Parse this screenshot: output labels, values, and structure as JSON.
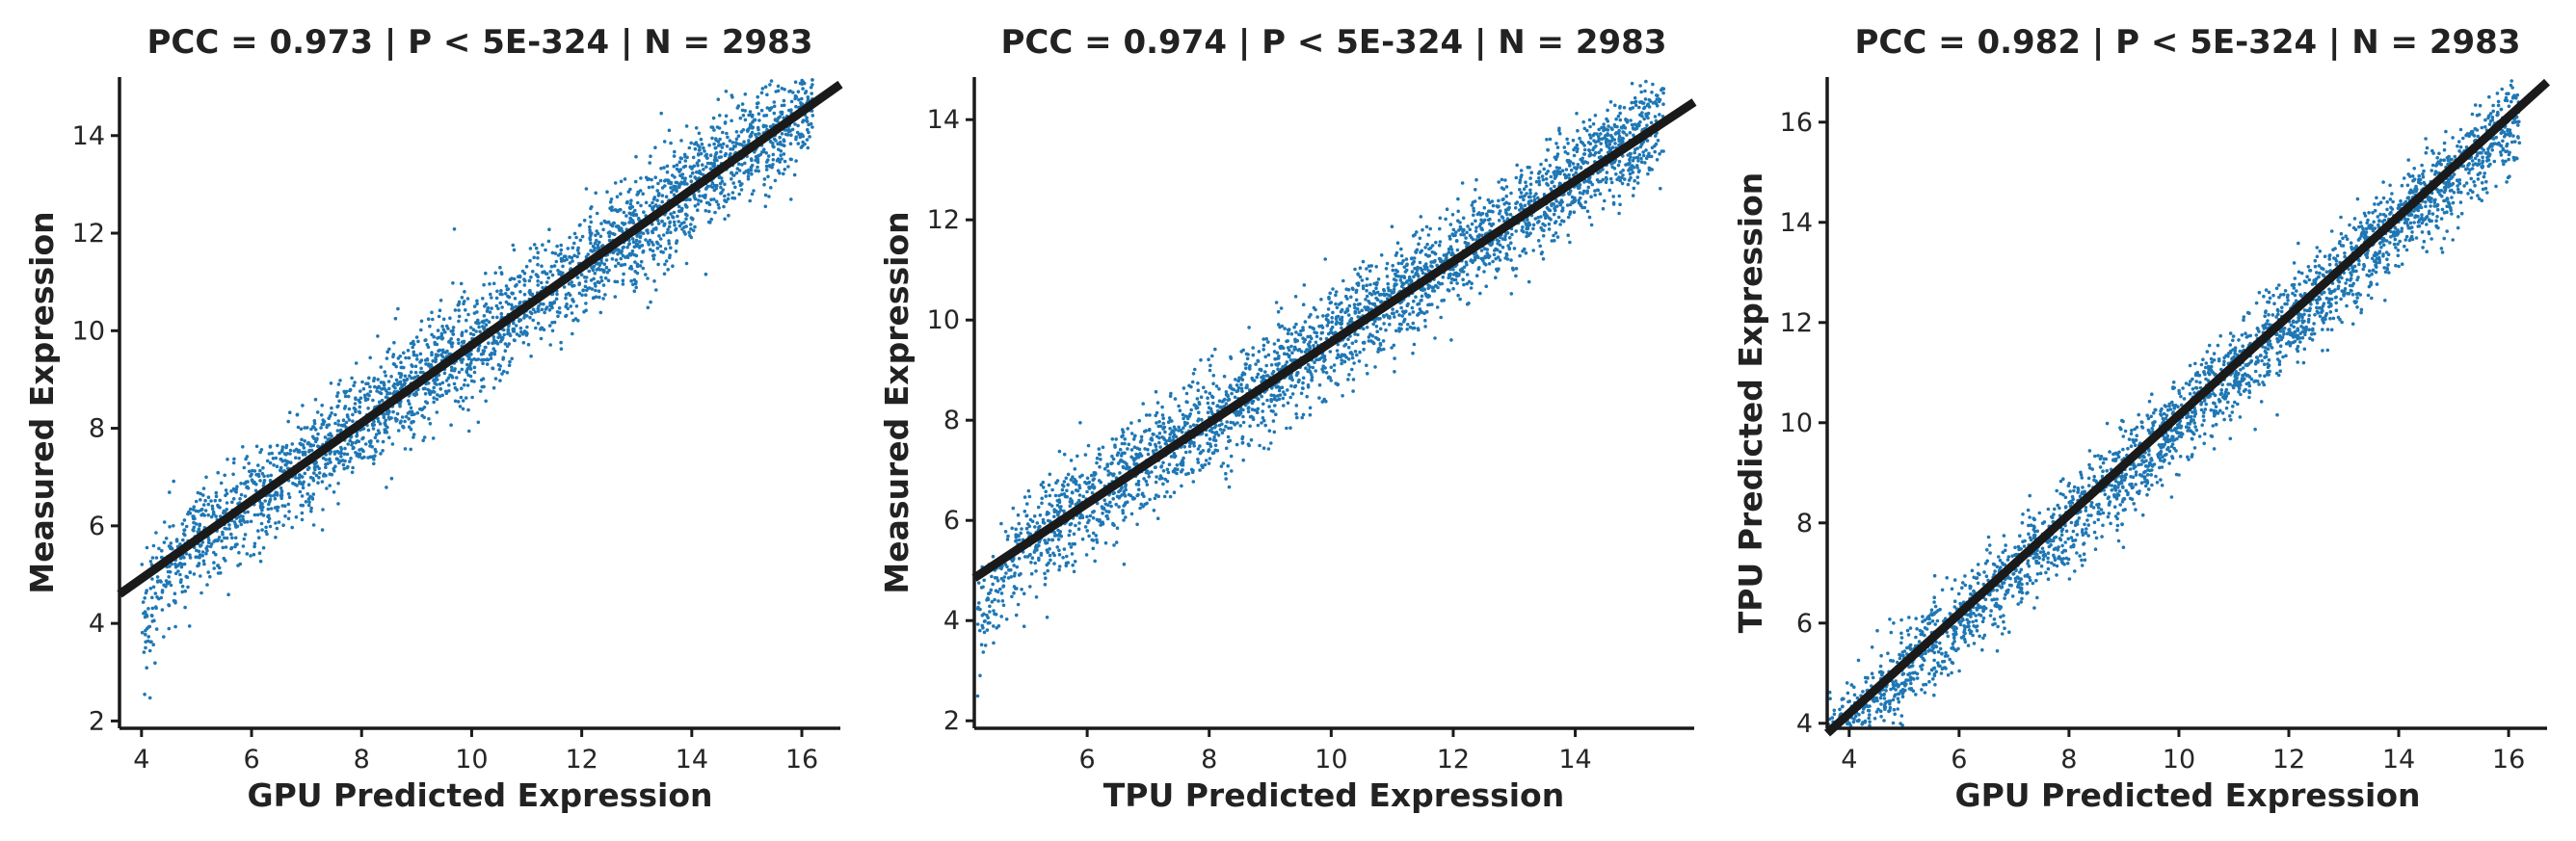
{
  "figure": {
    "point_color": "#1f77b4",
    "line_color": "#1a1a1a"
  },
  "chart_data": [
    {
      "type": "scatter",
      "title": "PCC =  0.973 | P <  5E-324 | N = 2983",
      "xlabel": "GPU Predicted Expression",
      "ylabel": "Measured Expression",
      "xlim": [
        3.6,
        16.7
      ],
      "ylim": [
        1.85,
        15.2
      ],
      "xticks": [
        4,
        6,
        8,
        10,
        12,
        14,
        16
      ],
      "yticks": [
        2,
        4,
        6,
        8,
        10,
        12,
        14
      ],
      "n_points": 2983,
      "fit_line": {
        "x": [
          3.6,
          16.7
        ],
        "y": [
          4.6,
          15.05
        ]
      },
      "trend": {
        "slope": 0.8,
        "intercept": 1.72,
        "low_tail_start": 4.6,
        "low_tail_drop": 1.6,
        "spread": 0.55
      },
      "grid": false
    },
    {
      "type": "scatter",
      "title": "PCC =  0.974 | P <  5E-324 | N = 2983",
      "xlabel": "TPU Predicted Expression",
      "ylabel": "Measured Expression",
      "xlim": [
        4.15,
        15.95
      ],
      "ylim": [
        1.85,
        14.85
      ],
      "xticks": [
        6,
        8,
        10,
        12,
        14
      ],
      "yticks": [
        2,
        4,
        6,
        8,
        10,
        12,
        14
      ],
      "n_points": 2983,
      "fit_line": {
        "x": [
          4.15,
          15.95
        ],
        "y": [
          4.85,
          14.35
        ]
      },
      "trend": {
        "slope": 0.81,
        "intercept": 1.5,
        "low_tail_start": 4.8,
        "low_tail_drop": 1.8,
        "spread": 0.5
      },
      "grid": false
    },
    {
      "type": "scatter",
      "title": "PCC =  0.982 | P <  5E-324 | N = 2983",
      "xlabel": "GPU Predicted Expression",
      "ylabel": "TPU Predicted Expression",
      "xlim": [
        3.6,
        16.7
      ],
      "ylim": [
        3.9,
        16.9
      ],
      "xticks": [
        4,
        6,
        8,
        10,
        12,
        14,
        16
      ],
      "yticks": [
        4,
        6,
        8,
        10,
        12,
        14,
        16
      ],
      "n_points": 2983,
      "fit_line": {
        "x": [
          3.6,
          16.7
        ],
        "y": [
          3.8,
          16.8
        ]
      },
      "trend": {
        "slope": 0.99,
        "intercept": 0.1,
        "low_tail_start": 3.0,
        "low_tail_drop": 0,
        "spread": 0.45
      },
      "grid": false
    }
  ]
}
